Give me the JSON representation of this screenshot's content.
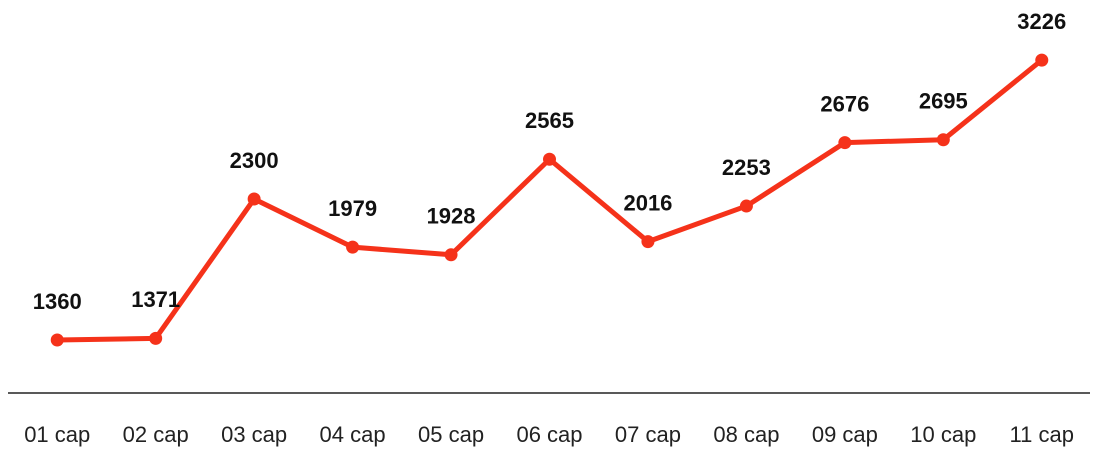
{
  "chart_data": {
    "type": "line",
    "categories": [
      "01 cap",
      "02 cap",
      "03 cap",
      "04 cap",
      "05 cap",
      "06 cap",
      "07 cap",
      "08 cap",
      "09 cap",
      "10 cap",
      "11 cap"
    ],
    "series": [
      {
        "color": "#f5321a",
        "values": [
          1360,
          1371,
          2300,
          1979,
          1928,
          2565,
          2016,
          2253,
          2676,
          2695,
          3226
        ]
      }
    ],
    "ylim": [
      1000,
      3600
    ]
  }
}
